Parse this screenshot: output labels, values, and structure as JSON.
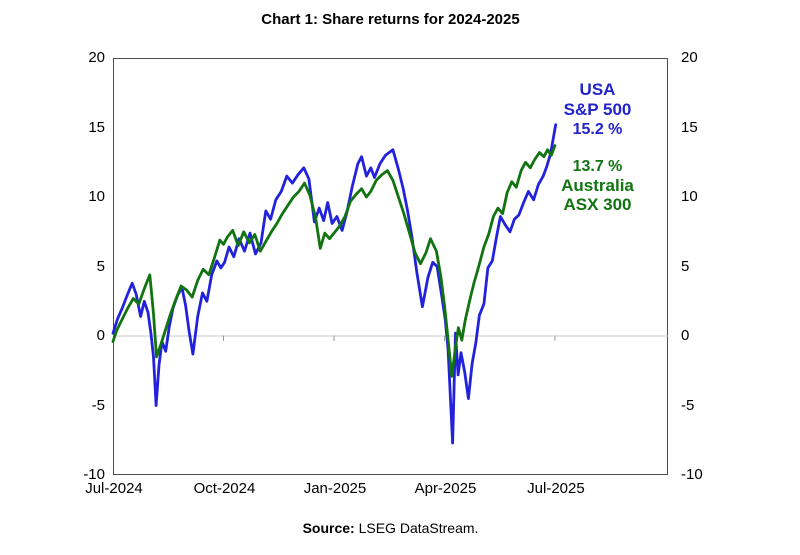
{
  "title": "Chart 1: Share returns for 2024-2025",
  "source": {
    "label": "Source:",
    "text": " LSEG DataStream."
  },
  "legend": {
    "usa": {
      "name_line1": "USA",
      "name_line2": "S&P 500",
      "value": "15.2 %"
    },
    "australia": {
      "value": "13.7 %",
      "name_line1": "Australia",
      "name_line2": "ASX 300"
    }
  },
  "colors": {
    "usa_line": "#2222dd",
    "usa_text": "#2222cc",
    "australia_line": "#117411",
    "australia_text": "#117411",
    "zero_line": "#c8c8c8",
    "tick_mark": "#999999",
    "frame": "#4d4d4d"
  },
  "chart_data": {
    "type": "line",
    "title": "Chart 1: Share returns for 2024-2025",
    "x_unit": "months since 2024-07-01",
    "xlim": [
      0,
      15.07
    ],
    "ylim": [
      -10,
      20
    ],
    "y_ticks": [
      20,
      15,
      10,
      5,
      0,
      -5,
      -10
    ],
    "x_tick_positions": [
      0,
      3,
      6,
      9,
      12
    ],
    "x_tick_labels": [
      "Jul-2024",
      "Oct-2024",
      "Jan-2025",
      "Apr-2025",
      "Jul-2025"
    ],
    "grid": "zero-line-only",
    "legend_position": "top-right",
    "series": [
      {
        "name": "USA S&P 500",
        "color": "#2222dd",
        "final_value_label": "15.2 %",
        "points": [
          [
            0,
            0.2
          ],
          [
            0.12,
            1.2
          ],
          [
            0.25,
            2.0
          ],
          [
            0.38,
            2.9
          ],
          [
            0.52,
            3.8
          ],
          [
            0.63,
            3.0
          ],
          [
            0.75,
            1.4
          ],
          [
            0.85,
            2.5
          ],
          [
            0.95,
            1.7
          ],
          [
            1.03,
            0.2
          ],
          [
            1.1,
            -1.5
          ],
          [
            1.17,
            -5.0
          ],
          [
            1.25,
            -2.1
          ],
          [
            1.33,
            -0.4
          ],
          [
            1.43,
            -1.1
          ],
          [
            1.53,
            0.7
          ],
          [
            1.63,
            2.0
          ],
          [
            1.75,
            2.9
          ],
          [
            1.87,
            3.5
          ],
          [
            1.97,
            2.2
          ],
          [
            2.07,
            0.3
          ],
          [
            2.17,
            -1.3
          ],
          [
            2.3,
            1.4
          ],
          [
            2.43,
            3.1
          ],
          [
            2.55,
            2.5
          ],
          [
            2.68,
            4.4
          ],
          [
            2.82,
            5.4
          ],
          [
            2.93,
            4.9
          ],
          [
            3.03,
            5.3
          ],
          [
            3.15,
            6.4
          ],
          [
            3.28,
            5.7
          ],
          [
            3.42,
            7.0
          ],
          [
            3.57,
            6.1
          ],
          [
            3.72,
            7.4
          ],
          [
            3.87,
            5.9
          ],
          [
            4.02,
            6.7
          ],
          [
            4.15,
            9.0
          ],
          [
            4.28,
            8.4
          ],
          [
            4.42,
            9.8
          ],
          [
            4.57,
            10.4
          ],
          [
            4.72,
            11.5
          ],
          [
            4.87,
            11.0
          ],
          [
            5.02,
            11.6
          ],
          [
            5.18,
            12.1
          ],
          [
            5.32,
            11.3
          ],
          [
            5.47,
            8.2
          ],
          [
            5.6,
            9.2
          ],
          [
            5.72,
            8.3
          ],
          [
            5.83,
            9.6
          ],
          [
            5.95,
            8.1
          ],
          [
            6.08,
            8.6
          ],
          [
            6.22,
            7.6
          ],
          [
            6.35,
            8.9
          ],
          [
            6.5,
            10.8
          ],
          [
            6.65,
            12.4
          ],
          [
            6.75,
            12.9
          ],
          [
            6.88,
            11.5
          ],
          [
            7.0,
            12.1
          ],
          [
            7.1,
            11.4
          ],
          [
            7.25,
            12.4
          ],
          [
            7.4,
            13.0
          ],
          [
            7.6,
            13.4
          ],
          [
            7.75,
            12.0
          ],
          [
            7.88,
            10.6
          ],
          [
            8.0,
            9.0
          ],
          [
            8.12,
            7.1
          ],
          [
            8.25,
            4.6
          ],
          [
            8.4,
            2.1
          ],
          [
            8.55,
            4.2
          ],
          [
            8.68,
            5.3
          ],
          [
            8.8,
            5.0
          ],
          [
            8.92,
            3.0
          ],
          [
            9.02,
            1.2
          ],
          [
            9.1,
            -1.0
          ],
          [
            9.22,
            -7.7
          ],
          [
            9.3,
            0.2
          ],
          [
            9.37,
            -2.8
          ],
          [
            9.45,
            -1.2
          ],
          [
            9.55,
            -2.6
          ],
          [
            9.65,
            -4.5
          ],
          [
            9.75,
            -2.0
          ],
          [
            9.85,
            -0.5
          ],
          [
            9.95,
            1.5
          ],
          [
            10.07,
            2.3
          ],
          [
            10.18,
            4.9
          ],
          [
            10.3,
            5.4
          ],
          [
            10.42,
            7.2
          ],
          [
            10.52,
            8.6
          ],
          [
            10.65,
            8.0
          ],
          [
            10.78,
            7.5
          ],
          [
            10.9,
            8.4
          ],
          [
            11.02,
            8.7
          ],
          [
            11.15,
            9.6
          ],
          [
            11.28,
            10.4
          ],
          [
            11.42,
            9.8
          ],
          [
            11.55,
            10.9
          ],
          [
            11.68,
            11.5
          ],
          [
            11.78,
            12.2
          ],
          [
            11.88,
            13.1
          ],
          [
            12.02,
            15.2
          ]
        ]
      },
      {
        "name": "Australia ASX 300",
        "color": "#117411",
        "final_value_label": "13.7 %",
        "points": [
          [
            0,
            -0.4
          ],
          [
            0.1,
            0.4
          ],
          [
            0.25,
            1.2
          ],
          [
            0.4,
            2.0
          ],
          [
            0.55,
            2.7
          ],
          [
            0.7,
            2.3
          ],
          [
            0.85,
            3.4
          ],
          [
            1.0,
            4.4
          ],
          [
            1.1,
            1.6
          ],
          [
            1.18,
            -1.5
          ],
          [
            1.3,
            -0.6
          ],
          [
            1.42,
            0.4
          ],
          [
            1.55,
            1.5
          ],
          [
            1.7,
            2.6
          ],
          [
            1.85,
            3.6
          ],
          [
            2.0,
            3.3
          ],
          [
            2.15,
            2.8
          ],
          [
            2.3,
            4.0
          ],
          [
            2.45,
            4.8
          ],
          [
            2.6,
            4.4
          ],
          [
            2.75,
            5.6
          ],
          [
            2.9,
            6.9
          ],
          [
            3.0,
            6.6
          ],
          [
            3.1,
            7.1
          ],
          [
            3.25,
            7.6
          ],
          [
            3.4,
            6.5
          ],
          [
            3.55,
            7.5
          ],
          [
            3.7,
            6.7
          ],
          [
            3.85,
            7.3
          ],
          [
            4.0,
            6.1
          ],
          [
            4.15,
            6.8
          ],
          [
            4.3,
            7.5
          ],
          [
            4.45,
            8.1
          ],
          [
            4.6,
            8.8
          ],
          [
            4.75,
            9.4
          ],
          [
            4.9,
            10.0
          ],
          [
            5.05,
            10.4
          ],
          [
            5.2,
            11.0
          ],
          [
            5.35,
            10.1
          ],
          [
            5.5,
            8.5
          ],
          [
            5.63,
            6.3
          ],
          [
            5.75,
            7.4
          ],
          [
            5.88,
            7.0
          ],
          [
            6.0,
            7.4
          ],
          [
            6.15,
            7.9
          ],
          [
            6.3,
            8.6
          ],
          [
            6.45,
            9.7
          ],
          [
            6.6,
            10.2
          ],
          [
            6.75,
            10.6
          ],
          [
            6.88,
            10.0
          ],
          [
            7.0,
            10.4
          ],
          [
            7.15,
            11.2
          ],
          [
            7.3,
            11.6
          ],
          [
            7.45,
            11.9
          ],
          [
            7.6,
            11.2
          ],
          [
            7.75,
            10.0
          ],
          [
            7.9,
            8.8
          ],
          [
            8.05,
            7.4
          ],
          [
            8.2,
            6.0
          ],
          [
            8.35,
            5.2
          ],
          [
            8.5,
            6.0
          ],
          [
            8.62,
            7.0
          ],
          [
            8.78,
            6.1
          ],
          [
            8.9,
            4.3
          ],
          [
            9.0,
            2.2
          ],
          [
            9.08,
            0.2
          ],
          [
            9.2,
            -2.9
          ],
          [
            9.3,
            -0.8
          ],
          [
            9.38,
            0.6
          ],
          [
            9.47,
            -0.3
          ],
          [
            9.57,
            1.2
          ],
          [
            9.68,
            2.5
          ],
          [
            9.8,
            3.8
          ],
          [
            9.93,
            5.0
          ],
          [
            10.07,
            6.4
          ],
          [
            10.2,
            7.3
          ],
          [
            10.33,
            8.6
          ],
          [
            10.45,
            9.2
          ],
          [
            10.58,
            8.8
          ],
          [
            10.7,
            10.3
          ],
          [
            10.83,
            11.1
          ],
          [
            10.95,
            10.7
          ],
          [
            11.08,
            11.9
          ],
          [
            11.2,
            12.5
          ],
          [
            11.33,
            12.1
          ],
          [
            11.45,
            12.7
          ],
          [
            11.58,
            13.2
          ],
          [
            11.7,
            12.9
          ],
          [
            11.8,
            13.4
          ],
          [
            11.9,
            13.0
          ],
          [
            12.0,
            13.7
          ]
        ]
      }
    ]
  }
}
